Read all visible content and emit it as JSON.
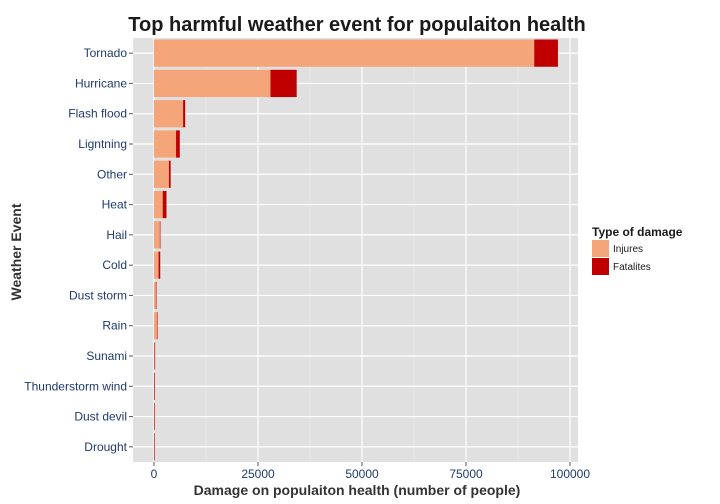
{
  "chart_data": {
    "type": "bar",
    "orientation": "horizontal",
    "stacked": true,
    "title": "Top harmful weather event for populaiton health",
    "xlabel": "Damage on populaiton health (number of people)",
    "ylabel": "Weather Event",
    "xlim": [
      0,
      100000
    ],
    "x_ticks": [
      0,
      25000,
      50000,
      75000,
      100000
    ],
    "x_tick_labels": [
      "0",
      "25000",
      "50000",
      "75000",
      "100000"
    ],
    "grid": true,
    "legend_position": "right",
    "legend_title": "Type of damage",
    "categories": [
      "Tornado",
      "Hurricane",
      "Flash flood",
      "Ligntning",
      "Other",
      "Heat",
      "Hail",
      "Cold",
      "Dust storm",
      "Rain",
      "Sunami",
      "Thunderstorm wind",
      "Dust devil",
      "Drought"
    ],
    "series": [
      {
        "name": "Injures",
        "color": "#f4a57a",
        "values": [
          91400,
          28000,
          7000,
          5300,
          3600,
          2100,
          1400,
          1100,
          450,
          700,
          130,
          90,
          45,
          20
        ]
      },
      {
        "name": "Fatalites",
        "color": "#c00000",
        "values": [
          5700,
          6300,
          500,
          900,
          400,
          900,
          45,
          400,
          25,
          100,
          35,
          10,
          5,
          10
        ]
      }
    ]
  },
  "colors": {
    "panel_background": "#e0e0e0",
    "grid_major": "#ffffff",
    "grid_minor": "#eaeaea"
  }
}
